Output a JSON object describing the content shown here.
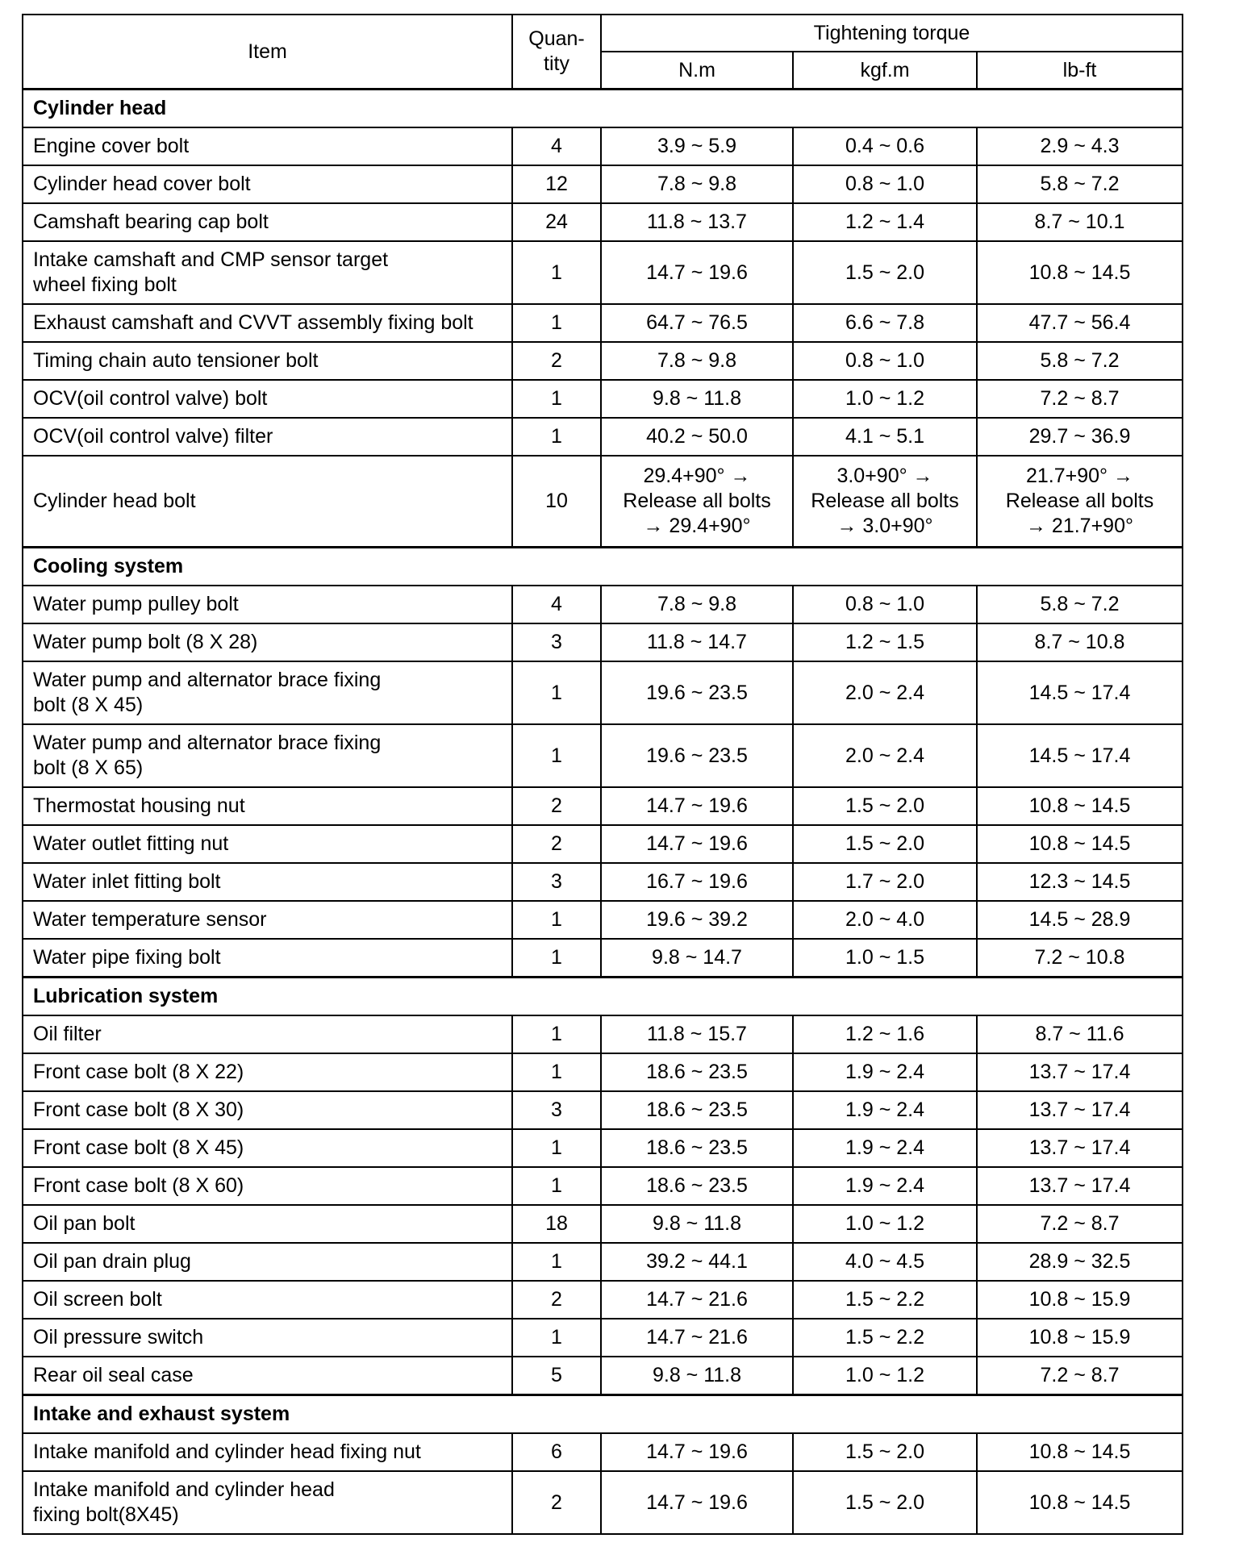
{
  "header": {
    "item": "Item",
    "quantity": "Quan-\ntity",
    "torque": "Tightening torque",
    "units": [
      "N.m",
      "kgf.m",
      "lb-ft"
    ]
  },
  "sections": [
    {
      "title": "Cylinder head",
      "rows": [
        {
          "item": "Engine cover bolt",
          "qty": "4",
          "nm": "3.9 ~ 5.9",
          "kgfm": "0.4 ~ 0.6",
          "lbft": "2.9 ~ 4.3"
        },
        {
          "item": "Cylinder head cover bolt",
          "qty": "12",
          "nm": "7.8 ~ 9.8",
          "kgfm": "0.8 ~ 1.0",
          "lbft": "5.8 ~ 7.2"
        },
        {
          "item": "Camshaft bearing cap bolt",
          "qty": "24",
          "nm": "11.8 ~ 13.7",
          "kgfm": "1.2 ~ 1.4",
          "lbft": "8.7 ~ 10.1"
        },
        {
          "item": "Intake camshaft and CMP sensor target\nwheel fixing bolt",
          "qty": "1",
          "nm": "14.7 ~ 19.6",
          "kgfm": "1.5 ~ 2.0",
          "lbft": "10.8 ~ 14.5",
          "h": 2
        },
        {
          "item": "Exhaust camshaft and CVVT assembly fixing bolt",
          "qty": "1",
          "nm": "64.7 ~ 76.5",
          "kgfm": "6.6 ~ 7.8",
          "lbft": "47.7 ~ 56.4"
        },
        {
          "item": "Timing chain auto tensioner bolt",
          "qty": "2",
          "nm": "7.8 ~ 9.8",
          "kgfm": "0.8 ~ 1.0",
          "lbft": "5.8 ~ 7.2"
        },
        {
          "item": "OCV(oil control valve) bolt",
          "qty": "1",
          "nm": "9.8 ~ 11.8",
          "kgfm": "1.0 ~ 1.2",
          "lbft": "7.2 ~ 8.7"
        },
        {
          "item": "OCV(oil control valve) filter",
          "qty": "1",
          "nm": "40.2 ~ 50.0",
          "kgfm": "4.1 ~ 5.1",
          "lbft": "29.7 ~ 36.9"
        },
        {
          "item": "Cylinder head bolt",
          "qty": "10",
          "nm": "29.4+90° →\nRelease all bolts\n→ 29.4+90°",
          "kgfm": "3.0+90° →\nRelease all bolts\n→ 3.0+90°",
          "lbft": "21.7+90° →\nRelease all bolts\n→ 21.7+90°",
          "h": 3
        }
      ]
    },
    {
      "title": "Cooling system",
      "rows": [
        {
          "item": "Water pump pulley bolt",
          "qty": "4",
          "nm": "7.8 ~ 9.8",
          "kgfm": "0.8 ~ 1.0",
          "lbft": "5.8 ~ 7.2"
        },
        {
          "item": "Water pump bolt (8 X 28)",
          "qty": "3",
          "nm": "11.8 ~ 14.7",
          "kgfm": "1.2 ~ 1.5",
          "lbft": "8.7 ~ 10.8"
        },
        {
          "item": "Water pump and alternator brace fixing\nbolt (8 X 45)",
          "qty": "1",
          "nm": "19.6 ~ 23.5",
          "kgfm": "2.0 ~ 2.4",
          "lbft": "14.5 ~ 17.4",
          "h": 2
        },
        {
          "item": "Water pump and alternator brace fixing\nbolt (8 X 65)",
          "qty": "1",
          "nm": "19.6 ~ 23.5",
          "kgfm": "2.0 ~ 2.4",
          "lbft": "14.5 ~ 17.4",
          "h": 2
        },
        {
          "item": "Thermostat housing nut",
          "qty": "2",
          "nm": "14.7 ~ 19.6",
          "kgfm": "1.5 ~ 2.0",
          "lbft": "10.8 ~ 14.5"
        },
        {
          "item": "Water outlet fitting nut",
          "qty": "2",
          "nm": "14.7 ~ 19.6",
          "kgfm": "1.5 ~ 2.0",
          "lbft": "10.8 ~ 14.5"
        },
        {
          "item": "Water inlet fitting bolt",
          "qty": "3",
          "nm": "16.7 ~ 19.6",
          "kgfm": "1.7 ~ 2.0",
          "lbft": "12.3 ~ 14.5"
        },
        {
          "item": "Water temperature sensor",
          "qty": "1",
          "nm": "19.6 ~ 39.2",
          "kgfm": "2.0 ~ 4.0",
          "lbft": "14.5 ~ 28.9"
        },
        {
          "item": "Water pipe fixing bolt",
          "qty": "1",
          "nm": "9.8 ~ 14.7",
          "kgfm": "1.0 ~ 1.5",
          "lbft": "7.2 ~ 10.8"
        }
      ]
    },
    {
      "title": "Lubrication system",
      "rows": [
        {
          "item": "Oil filter",
          "qty": "1",
          "nm": "11.8 ~ 15.7",
          "kgfm": "1.2 ~ 1.6",
          "lbft": "8.7 ~ 11.6"
        },
        {
          "item": "Front case bolt (8 X 22)",
          "qty": "1",
          "nm": "18.6 ~ 23.5",
          "kgfm": "1.9 ~ 2.4",
          "lbft": "13.7 ~ 17.4"
        },
        {
          "item": "Front case bolt (8 X 30)",
          "qty": "3",
          "nm": "18.6 ~ 23.5",
          "kgfm": "1.9 ~ 2.4",
          "lbft": "13.7 ~ 17.4"
        },
        {
          "item": "Front case bolt (8 X 45)",
          "qty": "1",
          "nm": "18.6 ~ 23.5",
          "kgfm": "1.9 ~ 2.4",
          "lbft": "13.7 ~ 17.4"
        },
        {
          "item": "Front case bolt (8 X 60)",
          "qty": "1",
          "nm": "18.6 ~ 23.5",
          "kgfm": "1.9 ~ 2.4",
          "lbft": "13.7 ~ 17.4"
        },
        {
          "item": "Oil pan bolt",
          "qty": "18",
          "nm": "9.8 ~ 11.8",
          "kgfm": "1.0 ~ 1.2",
          "lbft": "7.2 ~ 8.7"
        },
        {
          "item": "Oil pan drain plug",
          "qty": "1",
          "nm": "39.2 ~ 44.1",
          "kgfm": "4.0 ~ 4.5",
          "lbft": "28.9 ~ 32.5"
        },
        {
          "item": "Oil screen bolt",
          "qty": "2",
          "nm": "14.7 ~ 21.6",
          "kgfm": "1.5 ~ 2.2",
          "lbft": "10.8 ~ 15.9"
        },
        {
          "item": "Oil pressure switch",
          "qty": "1",
          "nm": "14.7 ~ 21.6",
          "kgfm": "1.5 ~ 2.2",
          "lbft": "10.8 ~ 15.9"
        },
        {
          "item": "Rear oil seal case",
          "qty": "5",
          "nm": "9.8 ~ 11.8",
          "kgfm": "1.0 ~ 1.2",
          "lbft": "7.2 ~ 8.7"
        }
      ]
    },
    {
      "title": "Intake and exhaust system",
      "rows": [
        {
          "item": "Intake manifold and cylinder head fixing nut",
          "qty": "6",
          "nm": "14.7 ~ 19.6",
          "kgfm": "1.5 ~ 2.0",
          "lbft": "10.8 ~ 14.5"
        },
        {
          "item": "Intake manifold and cylinder head\nfixing bolt(8X45)",
          "qty": "2",
          "nm": "14.7 ~ 19.6",
          "kgfm": "1.5 ~ 2.0",
          "lbft": "10.8 ~ 14.5",
          "h": 2
        }
      ]
    }
  ]
}
